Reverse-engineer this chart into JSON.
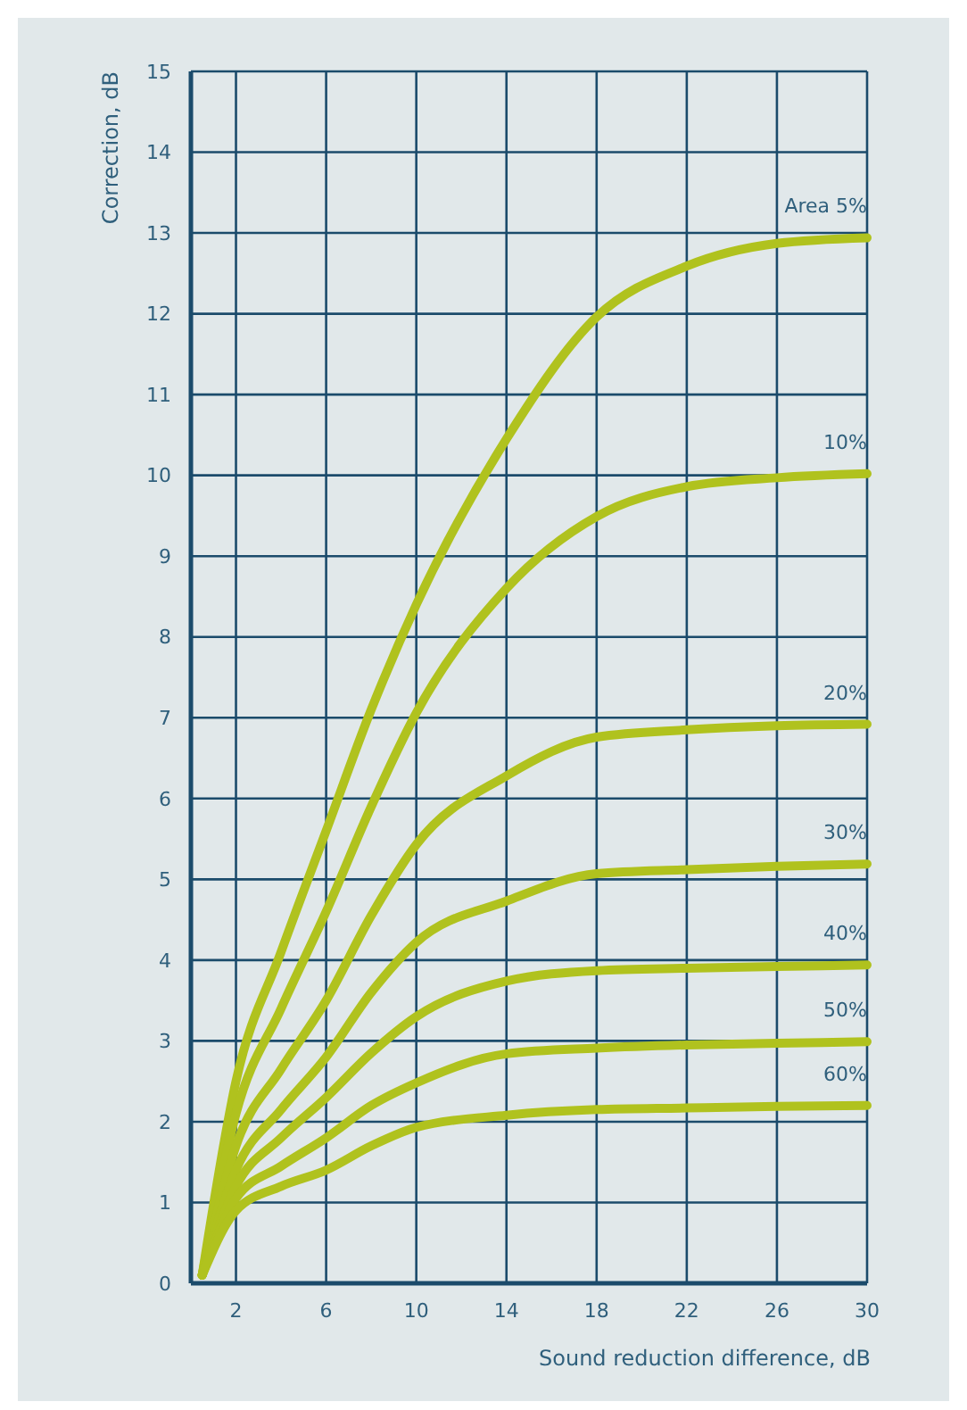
{
  "chart_data": {
    "type": "line",
    "xlabel": "Sound reduction difference, dB",
    "ylabel": "Correction, dB",
    "x": [
      0.5,
      2,
      4,
      6,
      8,
      10,
      14,
      18,
      22,
      26,
      30
    ],
    "series": [
      {
        "name": "Area 5%",
        "color": "#b0c21e",
        "values": [
          0.1,
          2.5,
          4.1,
          5.6,
          7.1,
          8.4,
          10.45,
          11.96,
          12.59,
          12.87,
          12.94
        ]
      },
      {
        "name": "10%",
        "color": "#b0c21e",
        "values": [
          0.1,
          2.1,
          3.4,
          4.6,
          5.9,
          7.06,
          8.6,
          9.49,
          9.86,
          9.97,
          10.02
        ]
      },
      {
        "name": "20%",
        "color": "#b0c21e",
        "values": [
          0.1,
          1.7,
          2.65,
          3.5,
          4.55,
          5.43,
          6.28,
          6.76,
          6.85,
          6.9,
          6.92
        ]
      },
      {
        "name": "30%",
        "color": "#b0c21e",
        "values": [
          0.1,
          1.4,
          2.15,
          2.8,
          3.6,
          4.22,
          4.73,
          5.07,
          5.12,
          5.16,
          5.19
        ]
      },
      {
        "name": "40%",
        "color": "#b0c21e",
        "values": [
          0.1,
          1.2,
          1.8,
          2.3,
          2.85,
          3.3,
          3.74,
          3.87,
          3.9,
          3.92,
          3.94
        ]
      },
      {
        "name": "50%",
        "color": "#b0c21e",
        "values": [
          0.1,
          1.05,
          1.45,
          1.8,
          2.2,
          2.48,
          2.84,
          2.91,
          2.95,
          2.97,
          2.99
        ]
      },
      {
        "name": "60%",
        "color": "#b0c21e",
        "values": [
          0.1,
          0.9,
          1.2,
          1.4,
          1.7,
          1.93,
          2.08,
          2.15,
          2.17,
          2.19,
          2.2
        ]
      }
    ],
    "xlim": [
      0,
      30
    ],
    "xticks": [
      2,
      6,
      10,
      14,
      18,
      22,
      26,
      30
    ],
    "ylim": [
      0,
      15
    ],
    "yticks": [
      0,
      1,
      2,
      3,
      4,
      5,
      6,
      7,
      8,
      9,
      10,
      11,
      12,
      13,
      14,
      15
    ],
    "grid": true,
    "marker": "none",
    "line_style": "solid"
  }
}
